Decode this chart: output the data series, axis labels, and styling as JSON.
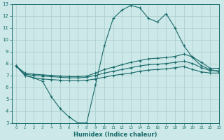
{
  "xlabel": "Humidex (Indice chaleur)",
  "background_color": "#cce8e8",
  "grid_color": "#aacccc",
  "line_color": "#1a6b6b",
  "xlim": [
    -0.5,
    23
  ],
  "ylim": [
    3,
    13
  ],
  "xticks": [
    0,
    1,
    2,
    3,
    4,
    5,
    6,
    7,
    8,
    9,
    10,
    11,
    12,
    13,
    14,
    15,
    16,
    17,
    18,
    19,
    20,
    21,
    22,
    23
  ],
  "yticks": [
    3,
    4,
    5,
    6,
    7,
    8,
    9,
    10,
    11,
    12,
    13
  ],
  "line1_x": [
    0,
    1,
    2,
    3,
    4,
    5,
    6,
    7,
    8,
    9,
    10,
    11,
    12,
    13,
    14,
    15,
    16,
    17,
    18,
    19,
    20,
    21,
    22,
    23
  ],
  "line1_y": [
    7.8,
    7.0,
    6.8,
    6.5,
    5.2,
    4.2,
    3.5,
    3.0,
    3.0,
    6.2,
    9.5,
    11.8,
    12.5,
    12.9,
    12.7,
    11.8,
    11.5,
    12.2,
    11.0,
    9.5,
    8.5,
    7.8,
    7.5,
    7.3
  ],
  "line2_x": [
    0,
    1,
    2,
    3,
    4,
    5,
    6,
    7,
    8,
    9,
    10,
    11,
    12,
    13,
    14,
    15,
    16,
    17,
    18,
    19,
    20,
    21,
    22,
    23
  ],
  "line2_y": [
    7.8,
    7.0,
    6.8,
    6.7,
    6.65,
    6.6,
    6.55,
    6.55,
    6.6,
    6.7,
    6.85,
    7.0,
    7.1,
    7.2,
    7.35,
    7.45,
    7.5,
    7.55,
    7.65,
    7.75,
    7.5,
    7.3,
    7.2,
    7.2
  ],
  "line3_x": [
    0,
    1,
    2,
    3,
    4,
    5,
    6,
    7,
    8,
    9,
    10,
    11,
    12,
    13,
    14,
    15,
    16,
    17,
    18,
    19,
    20,
    21,
    22,
    23
  ],
  "line3_y": [
    7.8,
    7.1,
    7.0,
    6.95,
    6.9,
    6.85,
    6.8,
    6.8,
    6.85,
    7.0,
    7.2,
    7.35,
    7.5,
    7.65,
    7.8,
    7.9,
    7.95,
    8.0,
    8.1,
    8.2,
    8.0,
    7.65,
    7.4,
    7.4
  ],
  "line4_x": [
    0,
    1,
    2,
    3,
    4,
    5,
    6,
    7,
    8,
    9,
    10,
    11,
    12,
    13,
    14,
    15,
    16,
    17,
    18,
    19,
    20,
    21,
    22,
    23
  ],
  "line4_y": [
    7.8,
    7.2,
    7.1,
    7.05,
    7.0,
    6.95,
    6.9,
    6.9,
    6.95,
    7.2,
    7.5,
    7.7,
    7.9,
    8.1,
    8.25,
    8.4,
    8.45,
    8.5,
    8.6,
    8.8,
    8.55,
    8.1,
    7.6,
    7.6
  ]
}
